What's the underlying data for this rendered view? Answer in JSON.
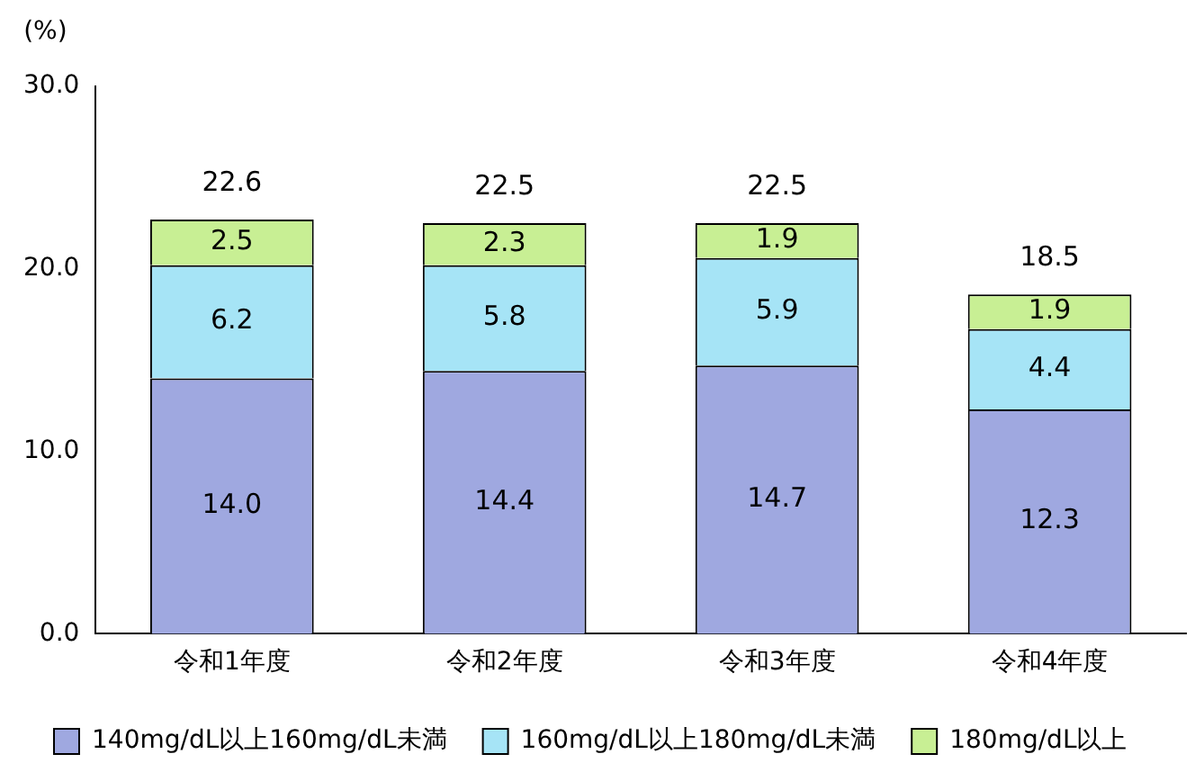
{
  "chart_data": {
    "type": "bar",
    "stacked": true,
    "ylabel": "(%)",
    "categories": [
      "令和1年度",
      "令和2年度",
      "令和3年度",
      "令和4年度"
    ],
    "series": [
      {
        "name": "140mg/dL以上160mg/dL未満",
        "color": "#9fa8e0",
        "values": [
          14.0,
          14.4,
          14.7,
          12.3
        ],
        "value_labels": [
          "14.0",
          "14.4",
          "14.7",
          "12.3"
        ]
      },
      {
        "name": "160mg/dL以上180mg/dL未満",
        "color": "#a6e4f6",
        "values": [
          6.2,
          5.8,
          5.9,
          4.4
        ],
        "value_labels": [
          "6.2",
          "5.8",
          "5.9",
          "4.4"
        ]
      },
      {
        "name": "180mg/dL以上",
        "color": "#c8ef94",
        "values": [
          2.5,
          2.3,
          1.9,
          1.9
        ],
        "value_labels": [
          "2.5",
          "2.3",
          "1.9",
          "1.9"
        ]
      }
    ],
    "totals": [
      "22.6",
      "22.5",
      "22.5",
      "18.5"
    ],
    "ylim": [
      0,
      30
    ],
    "yticks": [
      {
        "value": 0,
        "label": "0.0"
      },
      {
        "value": 10,
        "label": "10.0"
      },
      {
        "value": 20,
        "label": "20.0"
      },
      {
        "value": 30,
        "label": "30.0"
      }
    ],
    "grid": false,
    "legend": "bottom"
  }
}
